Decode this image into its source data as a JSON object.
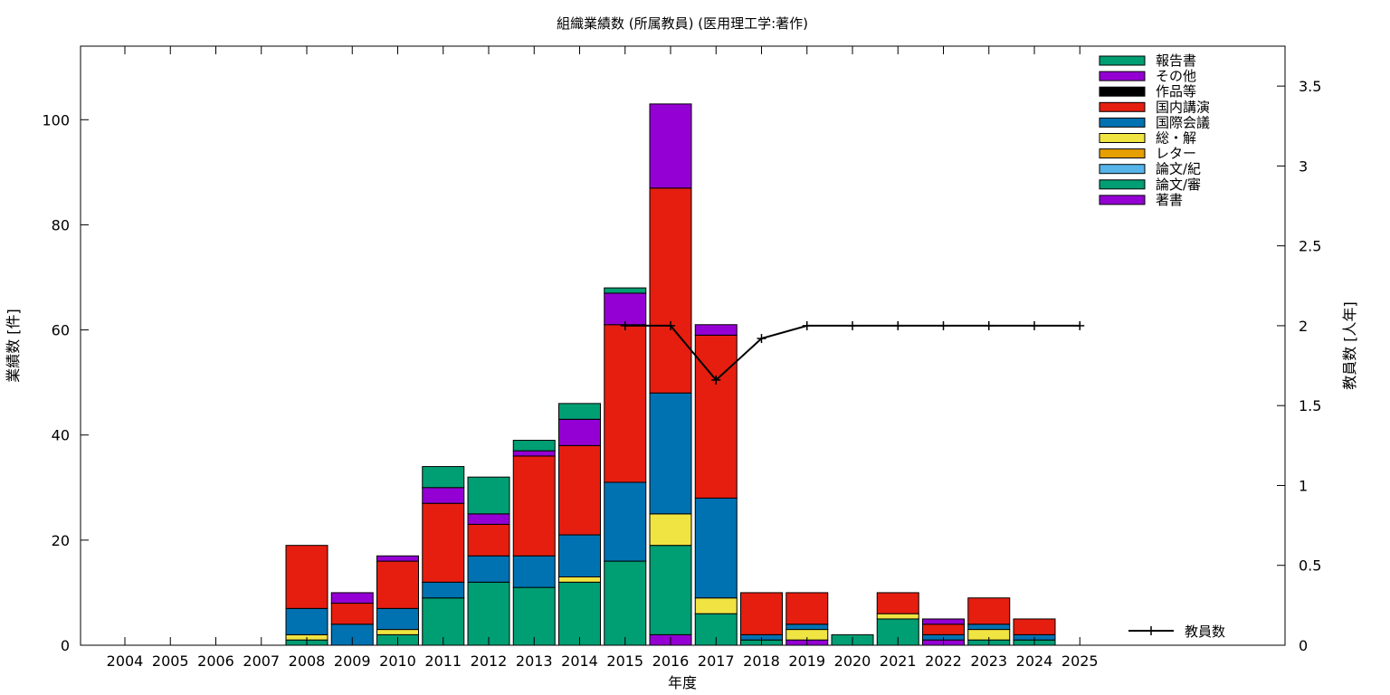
{
  "chart_data": {
    "type": "bar",
    "stacked": true,
    "title": "組織業績数 (所属教員) (医用理工学:著作)",
    "xlabel": "年度",
    "ylabel": "業績数 [件]",
    "y2label": "教員数 [人年]",
    "ylim": [
      0,
      114
    ],
    "y2lim": [
      0,
      3.75
    ],
    "yticks": [
      0,
      20,
      40,
      60,
      80,
      100
    ],
    "y2ticks": [
      "0",
      "0.5",
      "1",
      "1.5",
      "2",
      "2.5",
      "3",
      "3.5"
    ],
    "y2tick_values": [
      0,
      0.5,
      1,
      1.5,
      2,
      2.5,
      3,
      3.5
    ],
    "grid": false,
    "legend_position": "top-right",
    "categories": [
      "2004",
      "2005",
      "2006",
      "2007",
      "2008",
      "2009",
      "2010",
      "2011",
      "2012",
      "2013",
      "2014",
      "2015",
      "2016",
      "2017",
      "2018",
      "2019",
      "2020",
      "2021",
      "2022",
      "2023",
      "2024",
      "2025"
    ],
    "series": [
      {
        "name": "著書",
        "color": "#9400d3",
        "values": [
          0,
          0,
          0,
          0,
          0,
          0,
          0,
          0,
          0,
          0,
          0,
          0,
          2,
          0,
          0,
          1,
          0,
          0,
          1,
          0,
          0,
          0
        ]
      },
      {
        "name": "論文/審",
        "color": "#009e73",
        "values": [
          0,
          0,
          0,
          0,
          1,
          0,
          2,
          9,
          12,
          11,
          12,
          16,
          17,
          6,
          1,
          0,
          2,
          5,
          0,
          1,
          1,
          0
        ]
      },
      {
        "name": "論文/紀",
        "color": "#56b4e9",
        "values": [
          0,
          0,
          0,
          0,
          0,
          0,
          0,
          0,
          0,
          0,
          0,
          0,
          0,
          0,
          0,
          0,
          0,
          0,
          0,
          0,
          0,
          0
        ]
      },
      {
        "name": "レター",
        "color": "#e69f00",
        "values": [
          0,
          0,
          0,
          0,
          0,
          0,
          0,
          0,
          0,
          0,
          0,
          0,
          0,
          0,
          0,
          0,
          0,
          0,
          0,
          0,
          0,
          0
        ]
      },
      {
        "name": "総・解",
        "color": "#f0e442",
        "values": [
          0,
          0,
          0,
          0,
          1,
          0,
          1,
          0,
          0,
          0,
          1,
          0,
          6,
          3,
          0,
          2,
          0,
          1,
          0,
          2,
          0,
          0
        ]
      },
      {
        "name": "国際会議",
        "color": "#0072b2",
        "values": [
          0,
          0,
          0,
          0,
          5,
          4,
          4,
          3,
          5,
          6,
          8,
          15,
          23,
          19,
          1,
          1,
          0,
          0,
          1,
          1,
          1,
          0
        ]
      },
      {
        "name": "国内講演",
        "color": "#e51e10",
        "values": [
          0,
          0,
          0,
          0,
          12,
          4,
          9,
          15,
          6,
          19,
          17,
          30,
          39,
          31,
          8,
          6,
          0,
          4,
          2,
          5,
          3,
          0
        ]
      },
      {
        "name": "作品等",
        "color": "#000000",
        "values": [
          0,
          0,
          0,
          0,
          0,
          0,
          0,
          0,
          0,
          0,
          0,
          0,
          0,
          0,
          0,
          0,
          0,
          0,
          0,
          0,
          0,
          0
        ]
      },
      {
        "name": "その他",
        "color": "#9400d3",
        "values": [
          0,
          0,
          0,
          0,
          0,
          2,
          1,
          3,
          2,
          1,
          5,
          6,
          16,
          2,
          0,
          0,
          0,
          0,
          1,
          0,
          0,
          0
        ]
      },
      {
        "name": "報告書",
        "color": "#009e73",
        "values": [
          0,
          0,
          0,
          0,
          0,
          0,
          0,
          4,
          7,
          2,
          3,
          1,
          0,
          0,
          0,
          0,
          0,
          0,
          0,
          0,
          0,
          0
        ]
      }
    ],
    "legend_order": [
      "報告書",
      "その他",
      "作品等",
      "国内講演",
      "国際会議",
      "総・解",
      "レター",
      "論文/紀",
      "論文/審",
      "著書"
    ],
    "line": {
      "name": "教員数",
      "color": "#000000",
      "axis": "y2",
      "x": [
        "2015",
        "2016",
        "2017",
        "2018",
        "2019",
        "2020",
        "2021",
        "2022",
        "2023",
        "2024",
        "2025"
      ],
      "values": [
        2,
        2,
        1.66,
        1.92,
        2,
        2,
        2,
        2,
        2,
        2,
        2
      ]
    }
  }
}
